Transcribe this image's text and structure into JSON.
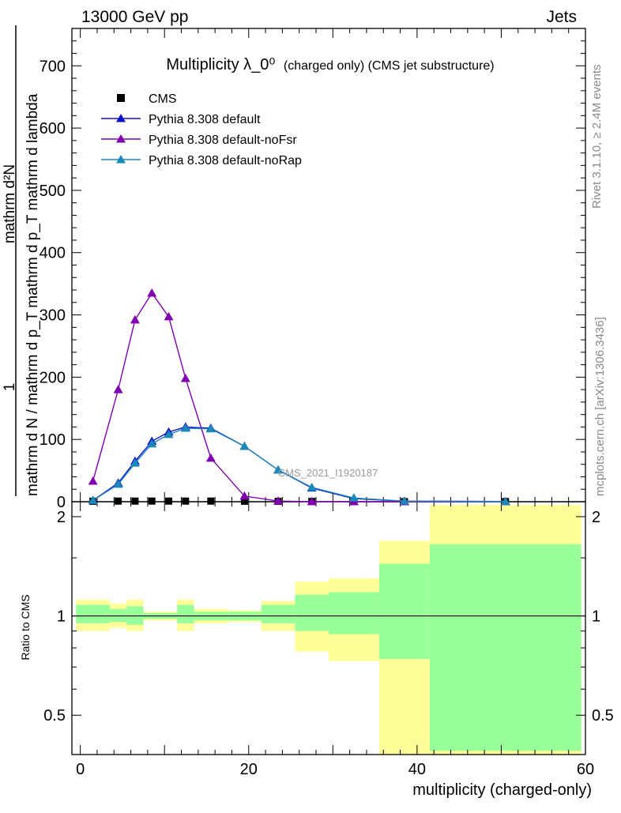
{
  "header": {
    "left": "13000 GeV pp",
    "right": "Jets"
  },
  "side": {
    "rivet": "Rivet 3.1.10, ≥ 2.4M events",
    "mcplots": "mcplots.cern.ch [arXiv:1306.3436]"
  },
  "watermark": "CMS_2021_I1920187",
  "chart_data": [
    {
      "type": "line",
      "title": "Multiplicity λ_0⁰",
      "title_note": "(charged only) (CMS jet substructure)",
      "ylabel_parts": [
        "1",
        "mathrm d N / mathrm d p_T mathrm d p_T mathrm d lambda",
        "mathrm d²N"
      ],
      "xlim": [
        -1,
        60
      ],
      "ylim": [
        0,
        760
      ],
      "yticks": [
        0,
        100,
        200,
        300,
        400,
        500,
        600,
        700
      ],
      "legend_position": "top-left",
      "series": [
        {
          "name": "CMS",
          "marker": "square",
          "color": "#000000",
          "x": [
            1.5,
            4.5,
            6.5,
            8.5,
            10.5,
            12.5,
            15.5,
            19.5,
            23.5,
            27.5,
            32.5,
            38.5,
            50.5
          ],
          "y": [
            0.8,
            1.0,
            1.0,
            1.0,
            1.0,
            1.0,
            1.0,
            0.8,
            0.6,
            0.4,
            0.2,
            0.2,
            0.3
          ]
        },
        {
          "name": "Pythia 8.308 default",
          "marker": "triangle",
          "color": "#1010c8",
          "x": [
            1.5,
            4.5,
            6.5,
            8.5,
            10.5,
            12.5,
            15.5,
            19.5,
            23.5,
            27.5,
            32.5,
            38.5,
            50.5
          ],
          "y": [
            2,
            30,
            65,
            97,
            112,
            120,
            118,
            89,
            51,
            22,
            5,
            0.8,
            0.3
          ]
        },
        {
          "name": "Pythia 8.308 default-noFsr",
          "marker": "triangle",
          "color": "#8000b0",
          "x": [
            1.5,
            4.5,
            6.5,
            8.5,
            10.5,
            12.5,
            15.5,
            19.5,
            23.5,
            27.5,
            32.5,
            38.5,
            50.5
          ],
          "y": [
            33,
            180,
            292,
            335,
            297,
            198,
            70,
            9,
            1,
            0.2,
            0,
            0,
            0
          ]
        },
        {
          "name": "Pythia 8.308 default-noRap",
          "marker": "triangle",
          "color": "#1a88b8",
          "x": [
            1.5,
            4.5,
            6.5,
            8.5,
            10.5,
            12.5,
            15.5,
            19.5,
            23.5,
            27.5,
            32.5,
            38.5,
            50.5
          ],
          "y": [
            2,
            28,
            62,
            93,
            108,
            118,
            117,
            89,
            51,
            23,
            6,
            1,
            0.3
          ]
        }
      ]
    },
    {
      "type": "area",
      "ylabel": "Ratio to CMS",
      "xlabel": "multiplicity (charged-only)",
      "xlim": [
        -1,
        60
      ],
      "ylim": [
        0.38,
        2.22
      ],
      "yticks": [
        0.5,
        1,
        2
      ],
      "ytick_labels": [
        "0.5",
        "1",
        "2"
      ],
      "xticks": [
        0,
        20,
        40,
        60
      ],
      "reference_line": 1,
      "bands": [
        {
          "name": "total uncertainty",
          "color": "#ffff99",
          "bins": [
            [
              -0.5,
              3.5
            ],
            [
              3.5,
              5.5
            ],
            [
              5.5,
              7.5
            ],
            [
              7.5,
              9.5
            ],
            [
              9.5,
              11.5
            ],
            [
              11.5,
              13.5
            ],
            [
              13.5,
              17.5
            ],
            [
              17.5,
              21.5
            ],
            [
              21.5,
              25.5
            ],
            [
              25.5,
              29.5
            ],
            [
              29.5,
              35.5
            ],
            [
              35.5,
              41.5
            ],
            [
              41.5,
              59.5
            ]
          ],
          "low": [
            0.9,
            0.92,
            0.9,
            0.97,
            0.97,
            0.9,
            0.95,
            0.96,
            0.9,
            0.78,
            0.73,
            0.38,
            0.38
          ],
          "high": [
            1.12,
            1.09,
            1.12,
            1.03,
            1.03,
            1.12,
            1.05,
            1.04,
            1.11,
            1.27,
            1.3,
            1.69,
            2.17
          ]
        },
        {
          "name": "statistical uncertainty",
          "color": "#99ff99",
          "bins": [
            [
              -0.5,
              3.5
            ],
            [
              3.5,
              5.5
            ],
            [
              5.5,
              7.5
            ],
            [
              7.5,
              9.5
            ],
            [
              9.5,
              11.5
            ],
            [
              11.5,
              13.5
            ],
            [
              13.5,
              17.5
            ],
            [
              17.5,
              21.5
            ],
            [
              21.5,
              25.5
            ],
            [
              25.5,
              29.5
            ],
            [
              29.5,
              35.5
            ],
            [
              35.5,
              41.5
            ],
            [
              41.5,
              59.5
            ]
          ],
          "low": [
            0.95,
            0.96,
            0.94,
            0.98,
            0.98,
            0.95,
            0.97,
            0.97,
            0.95,
            0.9,
            0.88,
            0.74,
            0.39
          ],
          "high": [
            1.08,
            1.05,
            1.07,
            1.02,
            1.02,
            1.08,
            1.03,
            1.03,
            1.08,
            1.16,
            1.18,
            1.44,
            1.65
          ]
        }
      ]
    }
  ]
}
